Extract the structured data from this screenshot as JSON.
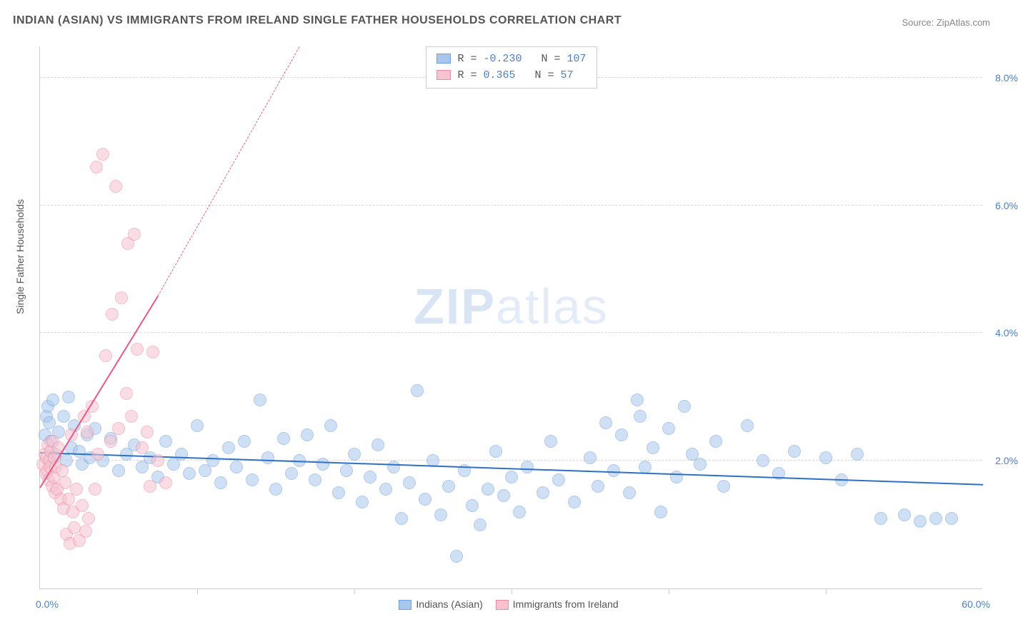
{
  "title": "INDIAN (ASIAN) VS IMMIGRANTS FROM IRELAND SINGLE FATHER HOUSEHOLDS CORRELATION CHART",
  "source": "Source: ZipAtlas.com",
  "watermark_main": "ZIP",
  "watermark_sub": "atlas",
  "chart": {
    "type": "scatter",
    "ylabel": "Single Father Households",
    "xlim": [
      0,
      60
    ],
    "ylim": [
      0,
      8.5
    ],
    "xticks": [
      10,
      20,
      30,
      40,
      50
    ],
    "yticks": [
      2.0,
      4.0,
      6.0,
      8.0
    ],
    "xmin_label": "0.0%",
    "xmax_label": "60.0%",
    "ytick_labels": [
      "2.0%",
      "4.0%",
      "6.0%",
      "8.0%"
    ],
    "grid_color": "#d8d8d8",
    "axis_color": "#cccccc",
    "background_color": "#ffffff",
    "label_color": "#555555",
    "tick_label_color": "#4a7fc9",
    "label_fontsize": 14,
    "title_fontsize": 16
  },
  "series": [
    {
      "name": "Indians (Asian)",
      "legend_label": "Indians (Asian)",
      "fill_color": "#a9c7ec",
      "stroke_color": "#6fa0dd",
      "trend_color": "#2e71c4",
      "fill_opacity": 0.55,
      "marker_radius": 9,
      "R": "-0.230",
      "N": "107",
      "trend": {
        "x1": 0,
        "y1": 2.15,
        "x2": 60,
        "y2": 1.65,
        "width": 2.5,
        "dash": false
      },
      "points": [
        [
          0.3,
          2.4
        ],
        [
          0.4,
          2.7
        ],
        [
          0.5,
          2.85
        ],
        [
          0.6,
          2.6
        ],
        [
          0.7,
          2.3
        ],
        [
          0.8,
          2.95
        ],
        [
          1.0,
          2.1
        ],
        [
          1.2,
          2.45
        ],
        [
          1.5,
          2.7
        ],
        [
          1.7,
          2.0
        ],
        [
          1.8,
          3.0
        ],
        [
          2.0,
          2.2
        ],
        [
          2.2,
          2.55
        ],
        [
          2.5,
          2.15
        ],
        [
          2.7,
          1.95
        ],
        [
          3.0,
          2.4
        ],
        [
          3.2,
          2.05
        ],
        [
          3.5,
          2.5
        ],
        [
          4.0,
          2.0
        ],
        [
          4.5,
          2.35
        ],
        [
          5.0,
          1.85
        ],
        [
          5.5,
          2.1
        ],
        [
          6.0,
          2.25
        ],
        [
          6.5,
          1.9
        ],
        [
          7.0,
          2.05
        ],
        [
          7.5,
          1.75
        ],
        [
          8.0,
          2.3
        ],
        [
          8.5,
          1.95
        ],
        [
          9.0,
          2.1
        ],
        [
          9.5,
          1.8
        ],
        [
          10.0,
          2.55
        ],
        [
          10.5,
          1.85
        ],
        [
          11.0,
          2.0
        ],
        [
          11.5,
          1.65
        ],
        [
          12.0,
          2.2
        ],
        [
          12.5,
          1.9
        ],
        [
          13.0,
          2.3
        ],
        [
          13.5,
          1.7
        ],
        [
          14.0,
          2.95
        ],
        [
          14.5,
          2.05
        ],
        [
          15.0,
          1.55
        ],
        [
          15.5,
          2.35
        ],
        [
          16.0,
          1.8
        ],
        [
          16.5,
          2.0
        ],
        [
          17.0,
          2.4
        ],
        [
          17.5,
          1.7
        ],
        [
          18.0,
          1.95
        ],
        [
          18.5,
          2.55
        ],
        [
          19.0,
          1.5
        ],
        [
          19.5,
          1.85
        ],
        [
          20.0,
          2.1
        ],
        [
          20.5,
          1.35
        ],
        [
          21.0,
          1.75
        ],
        [
          21.5,
          2.25
        ],
        [
          22.0,
          1.55
        ],
        [
          22.5,
          1.9
        ],
        [
          23.0,
          1.1
        ],
        [
          23.5,
          1.65
        ],
        [
          24.0,
          3.1
        ],
        [
          24.5,
          1.4
        ],
        [
          25.0,
          2.0
        ],
        [
          25.5,
          1.15
        ],
        [
          26.0,
          1.6
        ],
        [
          26.5,
          0.5
        ],
        [
          27.0,
          1.85
        ],
        [
          27.5,
          1.3
        ],
        [
          28.0,
          1.0
        ],
        [
          28.5,
          1.55
        ],
        [
          29.0,
          2.15
        ],
        [
          29.5,
          1.45
        ],
        [
          30.0,
          1.75
        ],
        [
          30.5,
          1.2
        ],
        [
          31.0,
          1.9
        ],
        [
          32.0,
          1.5
        ],
        [
          32.5,
          2.3
        ],
        [
          33.0,
          1.7
        ],
        [
          34.0,
          1.35
        ],
        [
          35.0,
          2.05
        ],
        [
          35.5,
          1.6
        ],
        [
          36.0,
          2.6
        ],
        [
          36.5,
          1.85
        ],
        [
          37.0,
          2.4
        ],
        [
          37.5,
          1.5
        ],
        [
          38.0,
          2.95
        ],
        [
          38.2,
          2.7
        ],
        [
          38.5,
          1.9
        ],
        [
          39.0,
          2.2
        ],
        [
          39.5,
          1.2
        ],
        [
          40.0,
          2.5
        ],
        [
          40.5,
          1.75
        ],
        [
          41.0,
          2.85
        ],
        [
          41.5,
          2.1
        ],
        [
          42.0,
          1.95
        ],
        [
          43.0,
          2.3
        ],
        [
          43.5,
          1.6
        ],
        [
          45.0,
          2.55
        ],
        [
          46.0,
          2.0
        ],
        [
          47.0,
          1.8
        ],
        [
          48.0,
          2.15
        ],
        [
          50.0,
          2.05
        ],
        [
          51.0,
          1.7
        ],
        [
          52.0,
          2.1
        ],
        [
          53.5,
          1.1
        ],
        [
          55.0,
          1.15
        ],
        [
          56.0,
          1.05
        ],
        [
          57.0,
          1.1
        ],
        [
          58.0,
          1.1
        ]
      ]
    },
    {
      "name": "Immigrants from Ireland",
      "legend_label": "Immigrants from Ireland",
      "fill_color": "#f6c3cf",
      "stroke_color": "#e98aa5",
      "trend_color": "#e65a8a",
      "fill_opacity": 0.55,
      "marker_radius": 9,
      "R": "0.365",
      "N": "57",
      "trend": {
        "x1": 0,
        "y1": 1.6,
        "x2": 7.5,
        "y2": 4.6,
        "width": 2,
        "dash": false
      },
      "trend_ext": {
        "x1": 7.5,
        "y1": 4.6,
        "x2": 16.5,
        "y2": 8.5,
        "width": 1,
        "dash": true
      },
      "points": [
        [
          0.2,
          1.95
        ],
        [
          0.3,
          2.1
        ],
        [
          0.35,
          1.8
        ],
        [
          0.4,
          2.05
        ],
        [
          0.45,
          1.85
        ],
        [
          0.5,
          2.25
        ],
        [
          0.55,
          1.7
        ],
        [
          0.6,
          2.0
        ],
        [
          0.65,
          1.9
        ],
        [
          0.7,
          2.15
        ],
        [
          0.75,
          1.6
        ],
        [
          0.8,
          2.3
        ],
        [
          0.85,
          1.75
        ],
        [
          0.9,
          2.05
        ],
        [
          0.95,
          1.5
        ],
        [
          1.0,
          1.9
        ],
        [
          1.1,
          1.55
        ],
        [
          1.2,
          2.2
        ],
        [
          1.3,
          1.4
        ],
        [
          1.4,
          1.85
        ],
        [
          1.5,
          1.25
        ],
        [
          1.6,
          1.65
        ],
        [
          1.7,
          0.85
        ],
        [
          1.8,
          1.4
        ],
        [
          1.9,
          0.7
        ],
        [
          2.0,
          2.4
        ],
        [
          2.1,
          1.2
        ],
        [
          2.2,
          0.95
        ],
        [
          2.3,
          1.55
        ],
        [
          2.5,
          0.75
        ],
        [
          2.7,
          1.3
        ],
        [
          2.8,
          2.7
        ],
        [
          2.9,
          0.9
        ],
        [
          3.0,
          2.45
        ],
        [
          3.1,
          1.1
        ],
        [
          3.3,
          2.85
        ],
        [
          3.5,
          1.55
        ],
        [
          3.6,
          6.6
        ],
        [
          3.7,
          2.1
        ],
        [
          4.0,
          6.8
        ],
        [
          4.2,
          3.65
        ],
        [
          4.5,
          2.3
        ],
        [
          4.6,
          4.3
        ],
        [
          4.8,
          6.3
        ],
        [
          5.0,
          2.5
        ],
        [
          5.2,
          4.55
        ],
        [
          5.5,
          3.05
        ],
        [
          5.6,
          5.4
        ],
        [
          5.8,
          2.7
        ],
        [
          6.0,
          5.55
        ],
        [
          6.2,
          3.75
        ],
        [
          6.5,
          2.2
        ],
        [
          6.8,
          2.45
        ],
        [
          7.0,
          1.6
        ],
        [
          7.2,
          3.7
        ],
        [
          7.5,
          2.0
        ],
        [
          8.0,
          1.65
        ]
      ]
    }
  ],
  "bottom_legend": {
    "items": [
      {
        "label": "Indians (Asian)",
        "fill": "#a9c7ec",
        "stroke": "#6fa0dd"
      },
      {
        "label": "Immigrants from Ireland",
        "fill": "#f6c3cf",
        "stroke": "#e98aa5"
      }
    ]
  }
}
